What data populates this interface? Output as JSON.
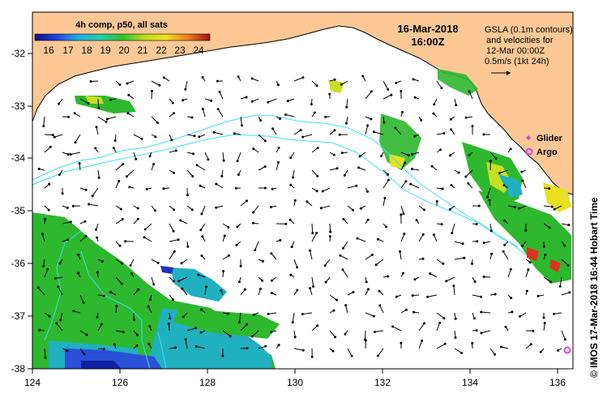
{
  "colorbar": {
    "title": "4h comp, p50, all sats",
    "ticks": [
      "16",
      "17",
      "18",
      "19",
      "20",
      "21",
      "22",
      "23",
      "24"
    ]
  },
  "header": {
    "date": "16-Mar-2018",
    "time": "16:00Z"
  },
  "info": {
    "line1": "GSLA (0.1m contours)",
    "line2": "and velocities for",
    "line3": "12-Mar 00:00Z",
    "scale": "0.5m/s (1kt 24h)"
  },
  "legend": {
    "glider": "Glider",
    "argo": "Argo"
  },
  "credit": "© IMOS 17-Mar-2018 16:44 Hobart Time",
  "axes": {
    "lon_ticks": [
      "124",
      "126",
      "128",
      "130",
      "132",
      "134",
      "136"
    ],
    "lat_ticks": [
      "-32",
      "-33",
      "-34",
      "-35",
      "-36",
      "-37",
      "-38"
    ],
    "lon_range": [
      124,
      136.6
    ],
    "lat_range": [
      -31.3,
      -38.1
    ]
  },
  "colors": {
    "land": "#fdc896",
    "ocean": "#ffffff",
    "contour": "#40e0f0",
    "argo": "#e040e0",
    "glider": "#e040e0",
    "sst_green": "#2eb82e",
    "sst_cyan": "#20b0c0",
    "sst_blue": "#2040d0"
  }
}
